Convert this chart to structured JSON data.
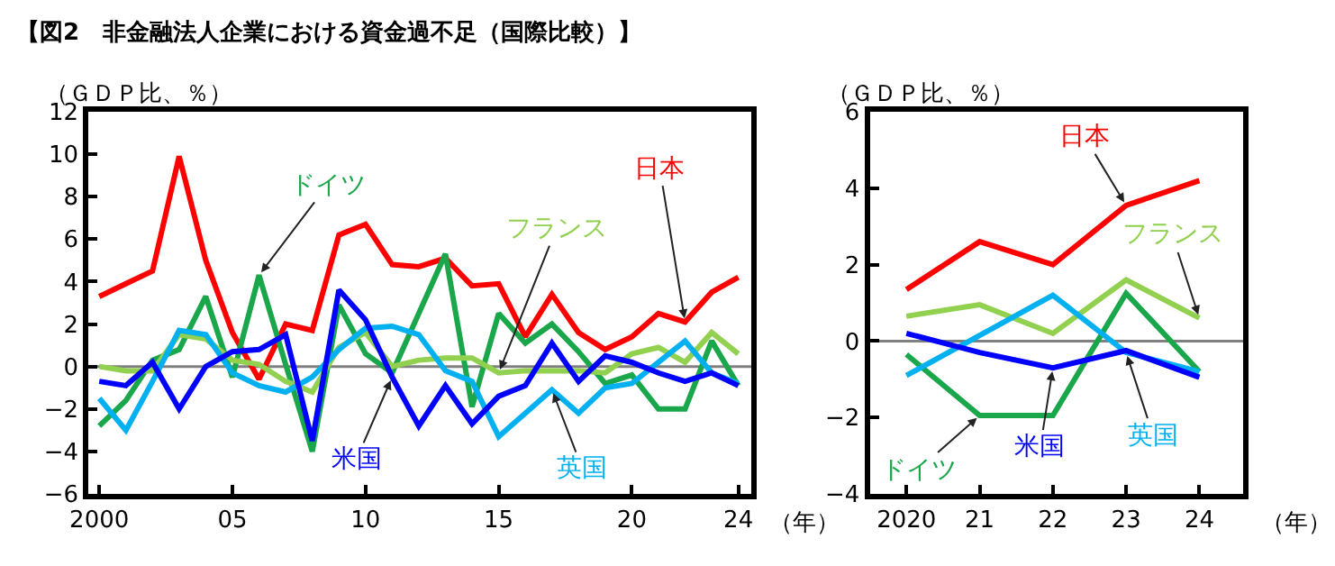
{
  "chart_data": [
    {
      "type": "line",
      "title": "【図2　非金融法人企業における資金過不足（国際比較）】",
      "ylabel": "（ＧＤＰ比、％）",
      "xlabel": "（年）",
      "x": [
        2000,
        2001,
        2002,
        2003,
        2004,
        2005,
        2006,
        2007,
        2008,
        2009,
        2010,
        2011,
        2012,
        2013,
        2014,
        2015,
        2016,
        2017,
        2018,
        2019,
        2020,
        2021,
        2022,
        2023,
        2024
      ],
      "xlim": [
        1999.6,
        2024.5
      ],
      "xticks": [
        2000,
        {
          "value": 2005,
          "label": "05"
        },
        {
          "value": 2010,
          "label": "10"
        },
        {
          "value": 2015,
          "label": "15"
        },
        {
          "value": 2020,
          "label": "20"
        },
        {
          "value": 2024,
          "label": "24"
        }
      ],
      "ylim": [
        -6,
        12
      ],
      "yticks": [
        -6,
        -4,
        -2,
        0,
        2,
        4,
        6,
        8,
        10,
        12
      ],
      "ref_lines": [
        {
          "axis": "y",
          "value": 0,
          "color": "#808080"
        }
      ],
      "series": [
        {
          "name": "日本",
          "color": "#ff0000",
          "values": [
            3.3,
            3.9,
            4.5,
            9.9,
            5.0,
            1.6,
            -0.6,
            2.0,
            1.7,
            6.2,
            6.7,
            4.8,
            4.7,
            5.1,
            3.8,
            3.9,
            1.4,
            3.4,
            1.6,
            0.8,
            1.4,
            2.5,
            2.1,
            3.5,
            4.2
          ]
        },
        {
          "name": "ドイツ",
          "color": "#1aa64a",
          "values": [
            -2.8,
            -1.6,
            0.3,
            0.8,
            3.3,
            -0.5,
            4.3,
            0.1,
            -4.0,
            2.9,
            0.6,
            -0.3,
            2.5,
            5.3,
            -1.9,
            2.5,
            1.1,
            2.0,
            0.7,
            -0.8,
            -0.4,
            -2.0,
            -2.0,
            1.2,
            -0.9
          ]
        },
        {
          "name": "フランス",
          "color": "#92d050",
          "values": [
            0.0,
            -0.2,
            -0.2,
            1.5,
            1.3,
            0.3,
            0.1,
            -0.7,
            -1.2,
            0.9,
            1.6,
            0.0,
            0.3,
            0.4,
            0.4,
            -0.3,
            -0.2,
            -0.2,
            -0.2,
            -0.3,
            0.6,
            0.9,
            0.2,
            1.6,
            0.6
          ]
        },
        {
          "name": "英国",
          "color": "#00b0f0",
          "values": [
            -1.5,
            -3.0,
            -0.7,
            1.7,
            1.5,
            -0.3,
            -0.9,
            -1.2,
            -0.5,
            0.8,
            1.8,
            1.9,
            1.5,
            -0.2,
            -0.7,
            -3.3,
            -2.2,
            -1.1,
            -2.2,
            -1.0,
            -0.8,
            0.2,
            1.2,
            -0.3,
            -0.8
          ]
        },
        {
          "name": "米国",
          "color": "#0000ff",
          "values": [
            -0.7,
            -0.9,
            0.2,
            -2.0,
            0.0,
            0.7,
            0.8,
            1.5,
            -3.5,
            3.6,
            2.2,
            -0.5,
            -2.8,
            -0.9,
            -2.7,
            -1.4,
            -0.9,
            1.1,
            -0.7,
            0.5,
            0.2,
            -0.3,
            -0.7,
            -0.3,
            -0.9
          ]
        }
      ]
    },
    {
      "type": "line",
      "ylabel": "（ＧＤＰ比、％）",
      "xlabel": "（年）",
      "x": [
        2020,
        2021,
        2022,
        2023,
        2024
      ],
      "xlim": [
        2019.5,
        2024.6
      ],
      "xticks": [
        2020,
        {
          "value": 2021,
          "label": "21"
        },
        {
          "value": 2022,
          "label": "22"
        },
        {
          "value": 2023,
          "label": "23"
        },
        {
          "value": 2024,
          "label": "24"
        }
      ],
      "ylim": [
        -4,
        6
      ],
      "yticks": [
        -4,
        -2,
        0,
        2,
        4,
        6
      ],
      "ref_lines": [
        {
          "axis": "y",
          "value": 0,
          "color": "#808080"
        }
      ],
      "series": [
        {
          "name": "日本",
          "color": "#ff0000",
          "values": [
            1.35,
            2.6,
            2.0,
            3.55,
            4.2
          ]
        },
        {
          "name": "ドイツ",
          "color": "#1aa64a",
          "values": [
            -0.35,
            -1.95,
            -1.95,
            1.25,
            -0.8
          ]
        },
        {
          "name": "フランス",
          "color": "#92d050",
          "values": [
            0.65,
            0.95,
            0.2,
            1.6,
            0.6
          ]
        },
        {
          "name": "英国",
          "color": "#00b0f0",
          "values": [
            -0.9,
            0.15,
            1.2,
            -0.3,
            -0.8
          ]
        },
        {
          "name": "米国",
          "color": "#0000ff",
          "values": [
            0.2,
            -0.3,
            -0.7,
            -0.25,
            -0.95
          ]
        }
      ]
    }
  ]
}
